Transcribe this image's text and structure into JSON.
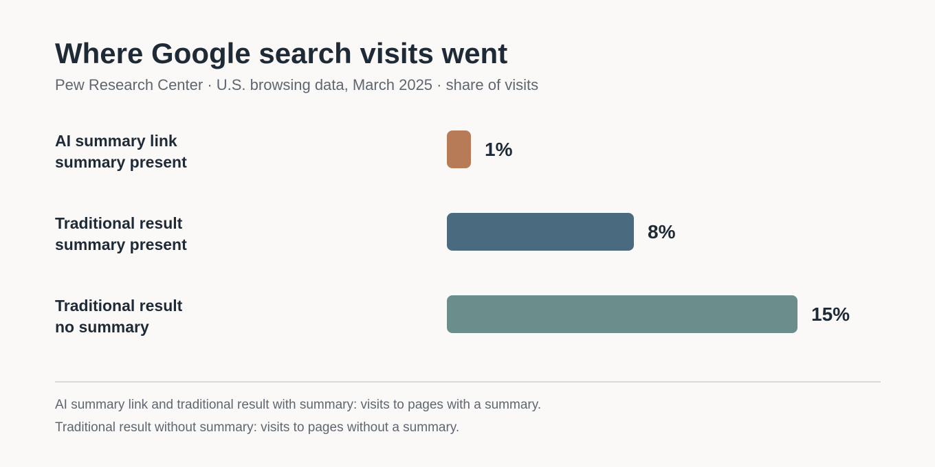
{
  "title": "Where Google search visits went",
  "subtitle": "Pew Research Center · U.S. browsing data, March 2025 · share of visits",
  "notes": [
    "AI summary link and traditional result with summary: visits to pages with a summary.",
    "Traditional result without summary: visits to pages without a summary."
  ],
  "chart_data": {
    "type": "bar",
    "orientation": "horizontal",
    "title": "Where Google search visits went",
    "subtitle": "Pew Research Center · U.S. browsing data, March 2025 · share of visits",
    "unit": "%",
    "categories": [
      [
        "AI summary link",
        "summary present"
      ],
      [
        "Traditional result",
        "summary present"
      ],
      [
        "Traditional result",
        "no summary"
      ]
    ],
    "values": [
      1,
      8,
      15
    ],
    "value_labels": [
      "1%",
      "8%",
      "15%"
    ],
    "colors": [
      "#b87b57",
      "#4a6a80",
      "#6b8d8c"
    ],
    "xlim": [
      0,
      16
    ],
    "grid": false,
    "legend": "none"
  }
}
